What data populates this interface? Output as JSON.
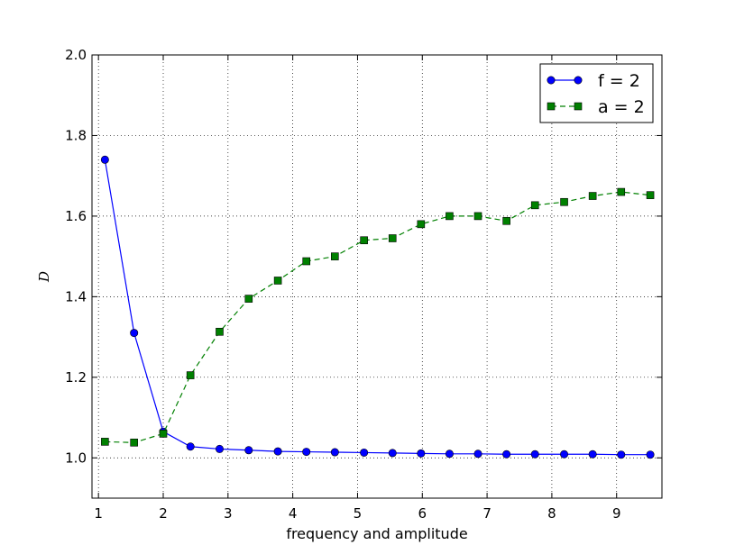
{
  "chart_data": {
    "type": "line",
    "xlabel": "frequency and amplitude",
    "ylabel": "D",
    "xlim": [
      0.9,
      9.7
    ],
    "ylim": [
      0.9,
      2.0
    ],
    "xticks": [
      1,
      2,
      3,
      4,
      5,
      6,
      7,
      8,
      9
    ],
    "yticks": [
      1.0,
      1.2,
      1.4,
      1.6,
      1.8,
      2.0
    ],
    "xtick_labels": [
      "1",
      "2",
      "3",
      "4",
      "5",
      "6",
      "7",
      "8",
      "9"
    ],
    "ytick_labels": [
      "1.0",
      "1.2",
      "1.4",
      "1.6",
      "1.8",
      "2.0"
    ],
    "grid": true,
    "legend_position": "top-right",
    "series": [
      {
        "name": "f = 2",
        "color": "#0000ff",
        "linestyle": "solid",
        "marker": "circle",
        "x": [
          1.1,
          1.55,
          2.0,
          2.42,
          2.87,
          3.32,
          3.77,
          4.21,
          4.65,
          5.1,
          5.54,
          5.98,
          6.42,
          6.86,
          7.3,
          7.74,
          8.19,
          8.63,
          9.07,
          9.52
        ],
        "y": [
          1.74,
          1.31,
          1.065,
          1.028,
          1.022,
          1.019,
          1.016,
          1.015,
          1.014,
          1.013,
          1.012,
          1.011,
          1.01,
          1.01,
          1.009,
          1.009,
          1.009,
          1.009,
          1.008,
          1.008
        ]
      },
      {
        "name": "a = 2",
        "color": "#008000",
        "linestyle": "dashed",
        "marker": "square",
        "x": [
          1.1,
          1.55,
          2.0,
          2.42,
          2.87,
          3.32,
          3.77,
          4.21,
          4.65,
          5.1,
          5.54,
          5.98,
          6.42,
          6.86,
          7.3,
          7.74,
          8.19,
          8.63,
          9.07,
          9.52
        ],
        "y": [
          1.04,
          1.038,
          1.06,
          1.205,
          1.313,
          1.395,
          1.44,
          1.488,
          1.5,
          1.54,
          1.545,
          1.58,
          1.6,
          1.6,
          1.588,
          1.627,
          1.635,
          1.65,
          1.66,
          1.652
        ]
      }
    ]
  }
}
